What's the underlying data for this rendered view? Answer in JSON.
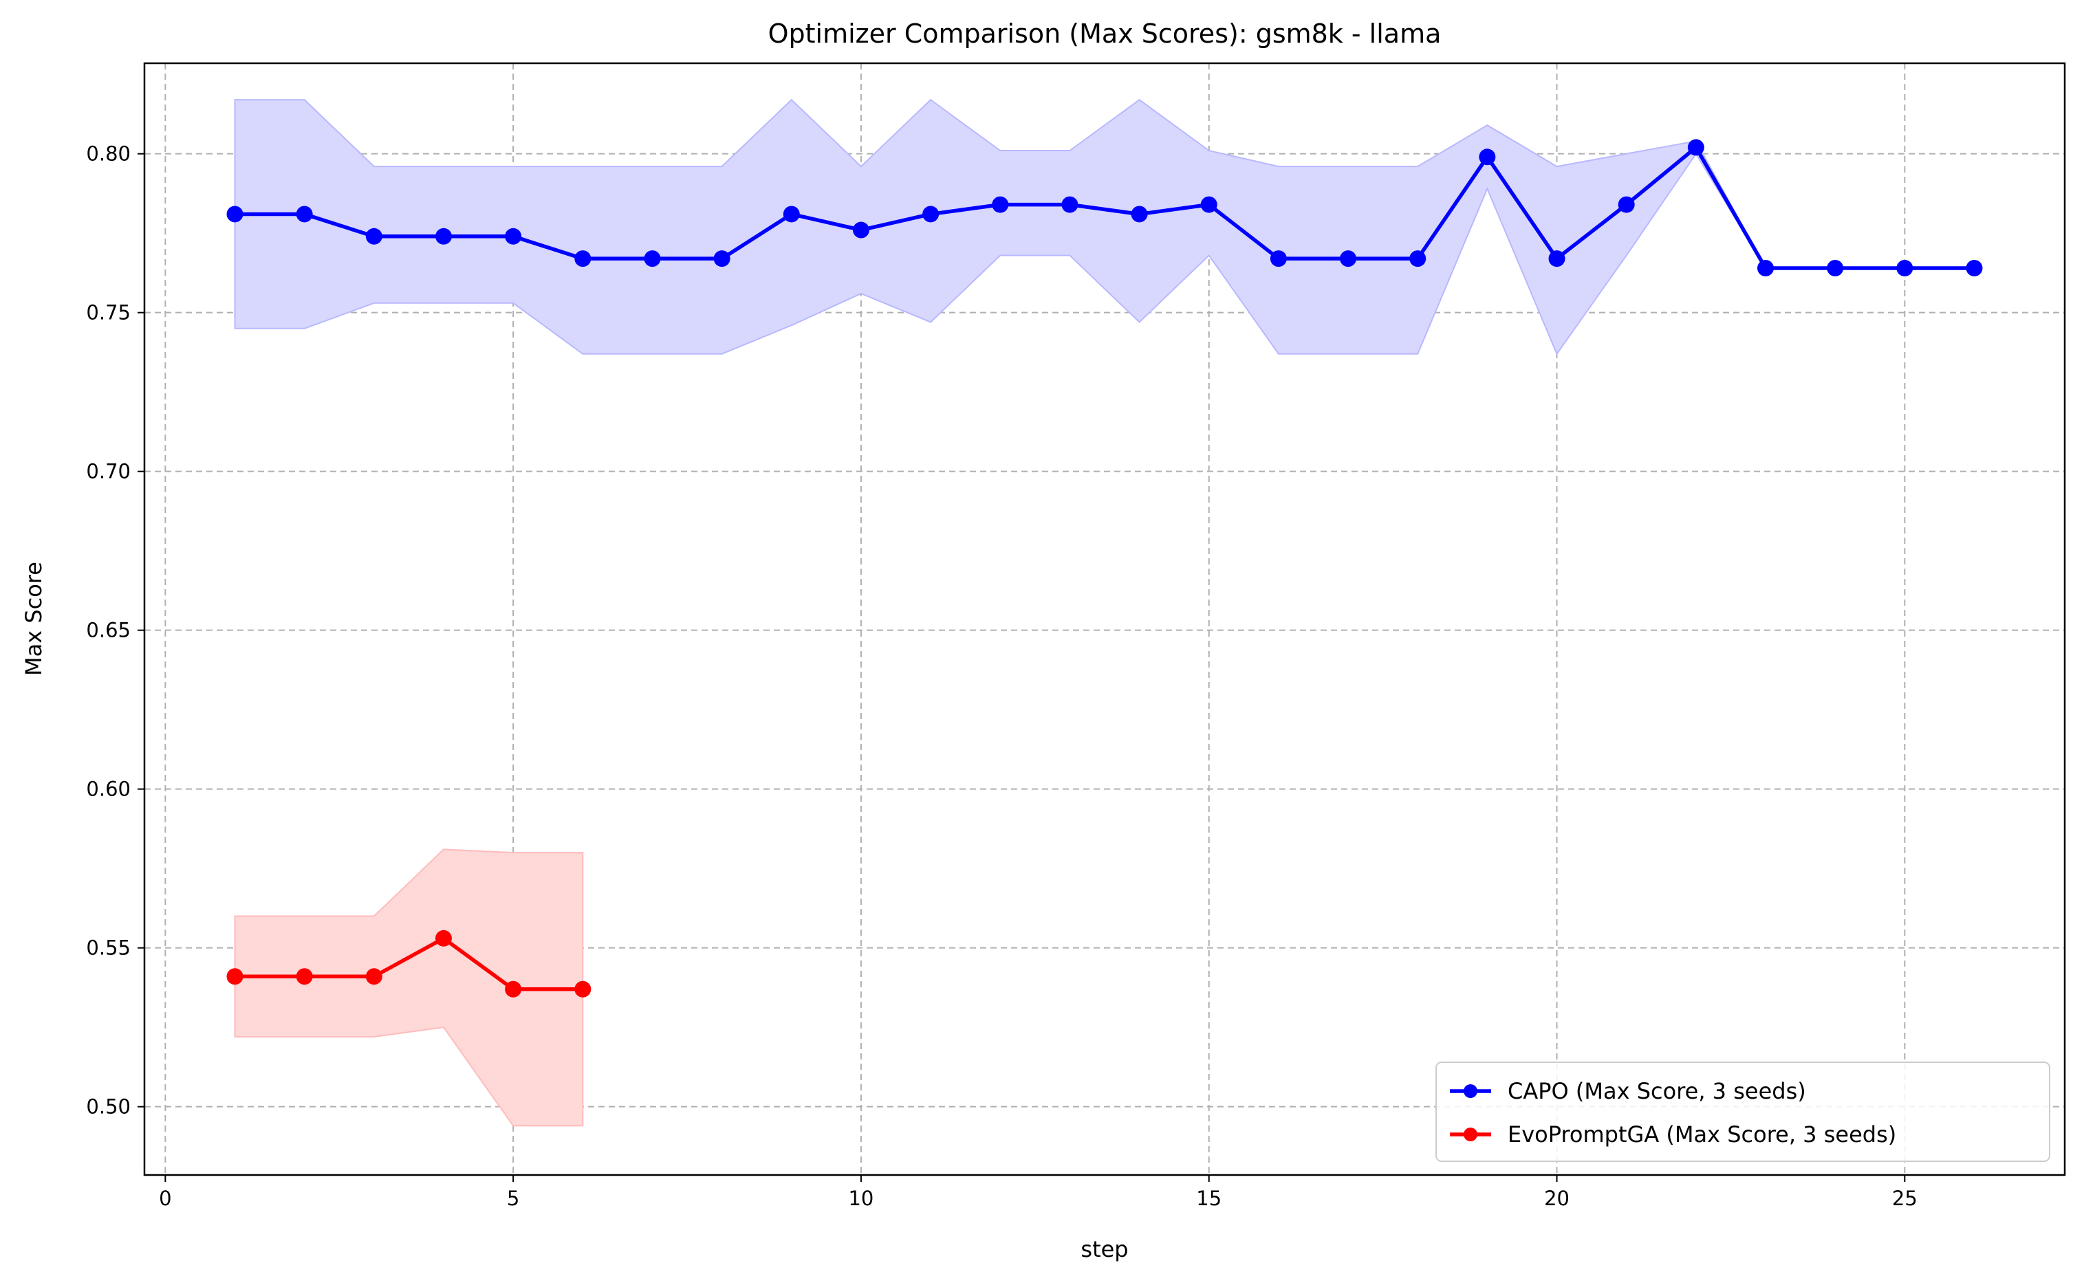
{
  "chart_data": {
    "type": "line",
    "title": "Optimizer Comparison (Max Scores): gsm8k - llama",
    "xlabel": "step",
    "ylabel": "Max Score",
    "xlim": [
      -0.3,
      27.3
    ],
    "ylim": [
      0.4785,
      0.8285
    ],
    "xticks": [
      0,
      5,
      10,
      15,
      20,
      25
    ],
    "yticks": [
      0.5,
      0.55,
      0.6,
      0.65,
      0.7,
      0.75,
      0.8
    ],
    "xtick_labels": [
      "0",
      "5",
      "10",
      "15",
      "20",
      "25"
    ],
    "ytick_labels": [
      "0.50",
      "0.55",
      "0.60",
      "0.65",
      "0.70",
      "0.75",
      "0.80"
    ],
    "grid": true,
    "legend_position": "bottom-right",
    "series": [
      {
        "name": "CAPO (Max Score, 3 seeds)",
        "color": "#0000ff",
        "band_color": "#d8d8ff",
        "band_edge_color": "#b8b8ff",
        "x": [
          1,
          2,
          3,
          4,
          5,
          6,
          7,
          8,
          9,
          10,
          11,
          12,
          13,
          14,
          15,
          16,
          17,
          18,
          19,
          20,
          21,
          22,
          23,
          24,
          25,
          26
        ],
        "y": [
          0.781,
          0.781,
          0.774,
          0.774,
          0.774,
          0.767,
          0.767,
          0.767,
          0.781,
          0.776,
          0.781,
          0.784,
          0.784,
          0.781,
          0.784,
          0.767,
          0.767,
          0.767,
          0.799,
          0.767,
          0.784,
          0.802,
          0.764,
          0.764,
          0.764,
          0.764
        ],
        "upper": [
          0.817,
          0.817,
          0.796,
          0.796,
          0.796,
          0.796,
          0.796,
          0.796,
          0.817,
          0.796,
          0.817,
          0.801,
          0.801,
          0.817,
          0.801,
          0.796,
          0.796,
          0.796,
          0.809,
          0.796,
          0.8,
          0.804,
          0.764,
          0.764,
          0.764,
          0.764
        ],
        "lower": [
          0.745,
          0.745,
          0.753,
          0.753,
          0.753,
          0.737,
          0.737,
          0.737,
          0.746,
          0.756,
          0.747,
          0.768,
          0.768,
          0.747,
          0.768,
          0.737,
          0.737,
          0.737,
          0.789,
          0.737,
          0.768,
          0.8,
          0.764,
          0.764,
          0.764,
          0.764
        ]
      },
      {
        "name": "EvoPromptGA (Max Score, 3 seeds)",
        "color": "#ff0000",
        "band_color": "#ffd8d8",
        "band_edge_color": "#ffbcbc",
        "x": [
          1,
          2,
          3,
          4,
          5,
          6
        ],
        "y": [
          0.541,
          0.541,
          0.541,
          0.553,
          0.537,
          0.537
        ],
        "upper": [
          0.56,
          0.56,
          0.56,
          0.581,
          0.58,
          0.58
        ],
        "lower": [
          0.522,
          0.522,
          0.522,
          0.525,
          0.494,
          0.494
        ]
      }
    ]
  }
}
